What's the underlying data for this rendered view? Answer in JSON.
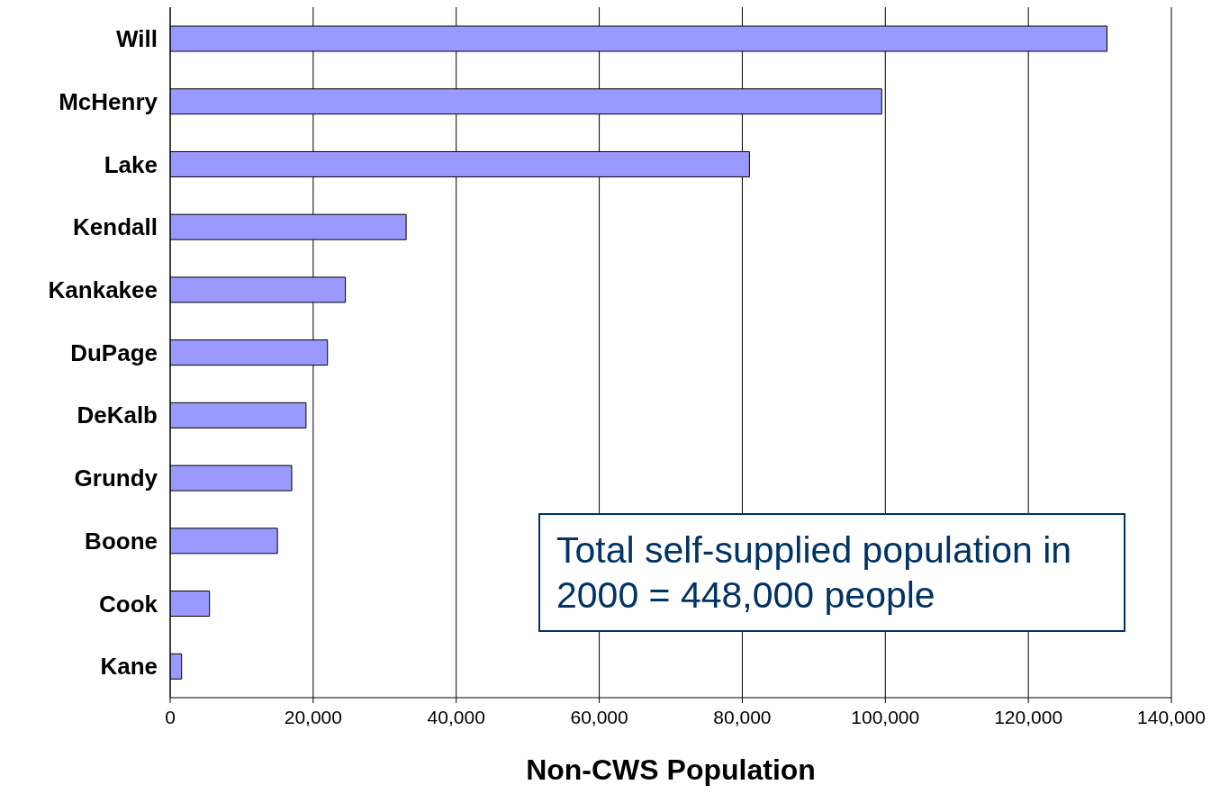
{
  "chart_data": {
    "type": "bar",
    "orientation": "horizontal",
    "xlabel": "Non-CWS Population",
    "categories": [
      "Will",
      "McHenry",
      "Lake",
      "Kendall",
      "Kankakee",
      "DuPage",
      "DeKalb",
      "Grundy",
      "Boone",
      "Cook",
      "Kane"
    ],
    "values": [
      131000,
      99500,
      81000,
      33000,
      24500,
      22000,
      19000,
      17000,
      15000,
      5500,
      1600
    ],
    "color": "#9999ff",
    "xlim": [
      0,
      140000
    ],
    "xticks": [
      {
        "value": 0,
        "label": "0"
      },
      {
        "value": 20000,
        "label": "20,000"
      },
      {
        "value": 40000,
        "label": "40,000"
      },
      {
        "value": 60000,
        "label": "60,000"
      },
      {
        "value": 80000,
        "label": "80,000"
      },
      {
        "value": 100000,
        "label": "100,000"
      },
      {
        "value": 120000,
        "label": "120,000"
      },
      {
        "value": 140000,
        "label": "140,000"
      }
    ],
    "grid": "x",
    "annotations": [
      "Total self-supplied population in 2000 = 448,000 people"
    ]
  }
}
